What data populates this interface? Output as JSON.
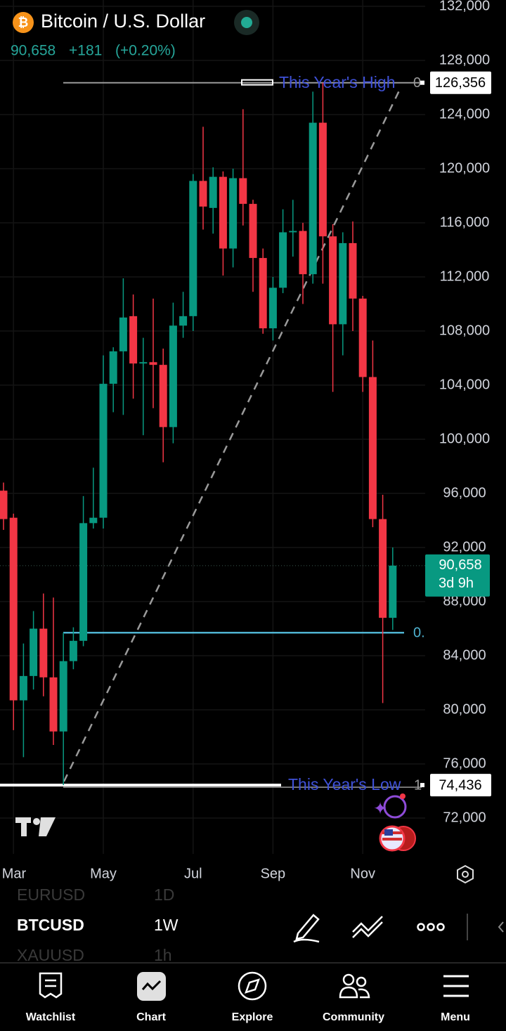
{
  "header": {
    "symbol": "Bitcoin / U.S. Dollar",
    "price": "90,658",
    "change": "+181",
    "change_pct": "(+0.20%)"
  },
  "chart_data": {
    "type": "candlestick",
    "categories": [
      null,
      "Mar",
      null,
      null,
      null,
      null,
      null,
      null,
      null,
      null,
      "May",
      null,
      null,
      null,
      null,
      null,
      null,
      null,
      null,
      "Jul",
      null,
      null,
      null,
      null,
      null,
      null,
      null,
      "Sep",
      null,
      null,
      null,
      null,
      null,
      null,
      null,
      null,
      "Nov",
      null,
      null,
      null
    ],
    "open": [
      96200,
      94200,
      80700,
      82500,
      86000,
      82400,
      78400,
      83600,
      85100,
      93800,
      94200,
      104100,
      106500,
      109100,
      105600,
      105700,
      105500,
      100900,
      108400,
      109100,
      119100,
      117100,
      119400,
      114100,
      119300,
      117400,
      113400,
      108200,
      111200,
      115300,
      115400,
      112200,
      123400,
      115000,
      108500,
      114500,
      110400,
      104600,
      94100,
      86800
    ],
    "high": [
      96800,
      94500,
      84900,
      87300,
      88600,
      88300,
      85700,
      86100,
      95800,
      97900,
      106200,
      106800,
      111900,
      110700,
      107500,
      110400,
      106700,
      110100,
      110900,
      119600,
      123100,
      120100,
      119800,
      120000,
      124400,
      117700,
      114100,
      112000,
      117000,
      117700,
      116000,
      125700,
      126356,
      115900,
      115300,
      116100,
      110600,
      107300,
      95900,
      92000
    ],
    "low": [
      93300,
      78500,
      76500,
      81500,
      81000,
      77400,
      74436,
      83000,
      84700,
      93400,
      93400,
      102000,
      101800,
      103000,
      100300,
      102300,
      98300,
      99700,
      107500,
      108000,
      115500,
      115200,
      112100,
      112700,
      115800,
      110900,
      107800,
      107300,
      110800,
      113500,
      110000,
      111500,
      111500,
      103500,
      106200,
      108000,
      103500,
      93500,
      80500,
      85900
    ],
    "close": [
      94100,
      80700,
      82500,
      86000,
      82400,
      78400,
      83600,
      85100,
      93800,
      94200,
      104100,
      106500,
      109000,
      105600,
      105700,
      105500,
      100900,
      108400,
      109100,
      119100,
      117200,
      119400,
      114100,
      119300,
      117400,
      113400,
      108200,
      111200,
      115300,
      115400,
      112200,
      123400,
      115000,
      108500,
      114500,
      110400,
      104600,
      94100,
      86800,
      90658
    ],
    "up_color": "#089981",
    "down_color": "#f23645",
    "ylim": [
      69350,
      132470
    ],
    "yticks": [
      {
        "value": 132000,
        "label": "132,000"
      },
      {
        "value": 128000,
        "label": "128,000"
      },
      {
        "value": 124000,
        "label": "124,000"
      },
      {
        "value": 120000,
        "label": "120,000"
      },
      {
        "value": 116000,
        "label": "116,000"
      },
      {
        "value": 112000,
        "label": "112,000"
      },
      {
        "value": 108000,
        "label": "108,000"
      },
      {
        "value": 104000,
        "label": "104,000"
      },
      {
        "value": 100000,
        "label": "100,000"
      },
      {
        "value": 96000,
        "label": "96,000"
      },
      {
        "value": 92000,
        "label": "92,000"
      },
      {
        "value": 88000,
        "label": "88,000"
      },
      {
        "value": 84000,
        "label": "84,000"
      },
      {
        "value": 80000,
        "label": "80,000"
      },
      {
        "value": 76000,
        "label": "76,000"
      },
      {
        "value": 72000,
        "label": "72,000"
      }
    ],
    "grid": true,
    "levels": [
      {
        "name": "This Year's High",
        "level": "0",
        "value": 126356,
        "value_label": "126,356"
      },
      {
        "name": "This Year's Low",
        "level": "1",
        "value": 74436,
        "value_label": "74,436"
      }
    ],
    "fib_line": {
      "level": "0.",
      "value": 85700,
      "color": "#4fb3d1"
    },
    "last_price": {
      "value": 90658,
      "label": "90,658",
      "countdown": "3d 9h"
    }
  },
  "toolbar": {
    "rows": [
      {
        "symbol": "EURUSD",
        "interval": "1D"
      },
      {
        "symbol": "BTCUSD",
        "interval": "1W"
      },
      {
        "symbol": "XAUUSD",
        "interval": "1h"
      }
    ]
  },
  "nav": {
    "items": [
      "Watchlist",
      "Chart",
      "Explore",
      "Community",
      "Menu"
    ]
  }
}
